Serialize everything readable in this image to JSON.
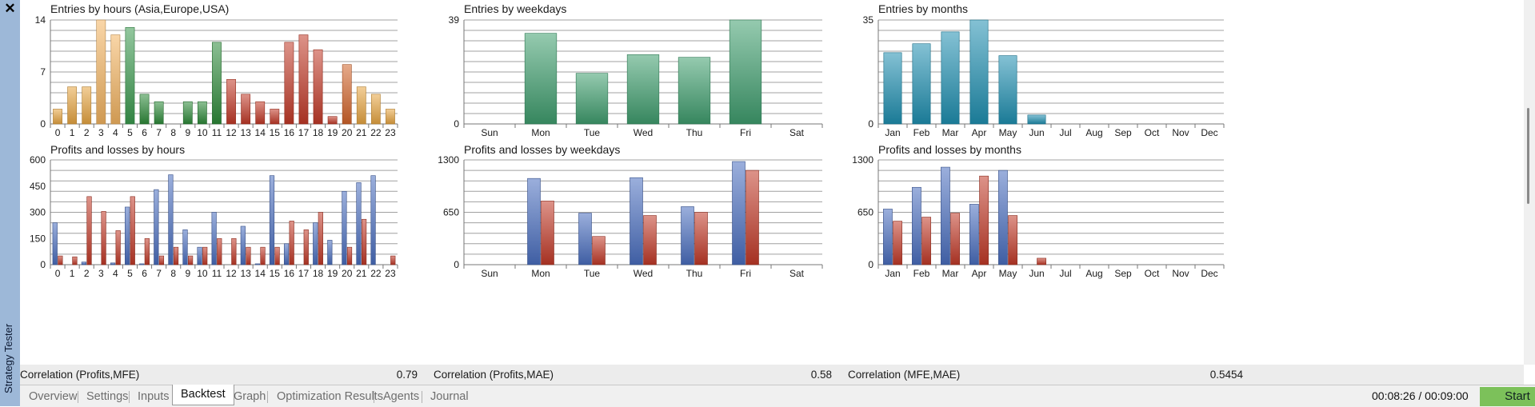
{
  "window": {
    "close_glyph": "✕",
    "panel_title": "Strategy Tester"
  },
  "colors": {
    "grid": "#a0a0a0",
    "entries_hours_palette": [
      "#f4b460",
      "#2e8b3a",
      "#c23a28"
    ],
    "entries_weekdays": "#3f9e6e",
    "entries_months": "#1f8fb0",
    "profit": "#4a6ec0",
    "loss": "#c23a28"
  },
  "hour_categories": [
    "0",
    "1",
    "2",
    "3",
    "4",
    "5",
    "6",
    "7",
    "8",
    "9",
    "10",
    "11",
    "12",
    "13",
    "14",
    "15",
    "16",
    "17",
    "18",
    "19",
    "20",
    "21",
    "22",
    "23"
  ],
  "weekday_categories": [
    "Sun",
    "Mon",
    "Tue",
    "Wed",
    "Thu",
    "Fri",
    "Sat"
  ],
  "month_categories": [
    "Jan",
    "Feb",
    "Mar",
    "Apr",
    "May",
    "Jun",
    "Jul",
    "Aug",
    "Sep",
    "Oct",
    "Nov",
    "Dec"
  ],
  "chart_data": [
    {
      "id": "entries-hours",
      "type": "bar",
      "title": "Entries by hours (Asia,Europe,USA)",
      "cats": "hour_categories",
      "ylim": [
        0,
        14
      ],
      "yticks": [
        0,
        7,
        14
      ],
      "grid": true,
      "series": [
        {
          "values": [
            2,
            5,
            5,
            14,
            12,
            13,
            4,
            3,
            0,
            3,
            3,
            11,
            6,
            4,
            3,
            2,
            11,
            12,
            10,
            1,
            8,
            5,
            4,
            2
          ]
        }
      ],
      "bar_colors": [
        "#e8a642",
        "#e8a642",
        "#e8a642",
        "#f4b460",
        "#f4b460",
        "#3a9a4e",
        "#2e8b3a",
        "#2e8b3a",
        "#2e8b3a",
        "#2e8b3a",
        "#2e8b3a",
        "#2e8b3a",
        "#c23a28",
        "#c23a28",
        "#c23a28",
        "#c23a28",
        "#c23a28",
        "#c23a28",
        "#c23a28",
        "#c23a28",
        "#d2642a",
        "#e8a642",
        "#e8a642",
        "#e8a642"
      ]
    },
    {
      "id": "entries-weekdays",
      "type": "bar",
      "title": "Entries by weekdays",
      "cats": "weekday_categories",
      "ylim": [
        0,
        39
      ],
      "yticks": [
        0,
        39
      ],
      "grid": true,
      "series": [
        {
          "values": [
            0,
            34,
            19,
            26,
            25,
            39,
            0
          ]
        }
      ]
    },
    {
      "id": "entries-months",
      "type": "bar",
      "title": "Entries by months",
      "cats": "month_categories",
      "ylim": [
        0,
        35
      ],
      "yticks": [
        0,
        35
      ],
      "grid": true,
      "series": [
        {
          "values": [
            24,
            27,
            31,
            35,
            23,
            3,
            0,
            0,
            0,
            0,
            0,
            0
          ]
        }
      ]
    },
    {
      "id": "pl-hours",
      "type": "bar",
      "title": "Profits and losses by hours",
      "cats": "hour_categories",
      "ylim": [
        0,
        600
      ],
      "yticks": [
        0,
        150,
        300,
        450,
        600
      ],
      "grid": true,
      "series": [
        {
          "kind": "profit",
          "values": [
            240,
            0,
            15,
            0,
            10,
            330,
            5,
            430,
            515,
            200,
            100,
            300,
            0,
            220,
            5,
            510,
            120,
            0,
            240,
            140,
            420,
            470,
            510,
            0
          ]
        },
        {
          "kind": "loss",
          "values": [
            50,
            45,
            390,
            305,
            195,
            390,
            150,
            50,
            100,
            50,
            100,
            150,
            150,
            100,
            100,
            100,
            250,
            200,
            300,
            0,
            100,
            260,
            0,
            50
          ]
        }
      ]
    },
    {
      "id": "pl-weekdays",
      "type": "bar",
      "title": "Profits and losses by weekdays",
      "cats": "weekday_categories",
      "ylim": [
        0,
        1300
      ],
      "yticks": [
        0,
        650,
        1300
      ],
      "grid": true,
      "series": [
        {
          "kind": "profit",
          "values": [
            0,
            1070,
            640,
            1080,
            720,
            1280,
            0
          ]
        },
        {
          "kind": "loss",
          "values": [
            0,
            790,
            350,
            610,
            650,
            1170,
            0
          ]
        }
      ]
    },
    {
      "id": "pl-months",
      "type": "bar",
      "title": "Profits and losses by months",
      "cats": "month_categories",
      "ylim": [
        0,
        1300
      ],
      "yticks": [
        0,
        650,
        1300
      ],
      "grid": true,
      "series": [
        {
          "kind": "profit",
          "values": [
            690,
            960,
            1210,
            750,
            1170,
            0,
            0,
            0,
            0,
            0,
            0,
            0
          ]
        },
        {
          "kind": "loss",
          "values": [
            540,
            590,
            640,
            1100,
            610,
            80,
            0,
            0,
            0,
            0,
            0,
            0
          ]
        }
      ]
    }
  ],
  "correlations": [
    {
      "label": "Correlation (Profits,MFE)",
      "value": "0.79"
    },
    {
      "label": "Correlation (Profits,MAE)",
      "value": "0.58"
    },
    {
      "label": "Correlation (MFE,MAE)",
      "value": "0.5454"
    }
  ],
  "tabs": [
    {
      "label": "Overview",
      "active": false
    },
    {
      "label": "Settings",
      "active": false
    },
    {
      "label": "Inputs",
      "active": false
    },
    {
      "label": "Backtest",
      "active": true
    },
    {
      "label": "Graph",
      "active": false
    },
    {
      "label": "Optimization Results",
      "active": false
    },
    {
      "label": "Agents",
      "active": false
    },
    {
      "label": "Journal",
      "active": false
    }
  ],
  "status": {
    "timer": "00:08:26 / 00:09:00",
    "start_label": "Start"
  }
}
